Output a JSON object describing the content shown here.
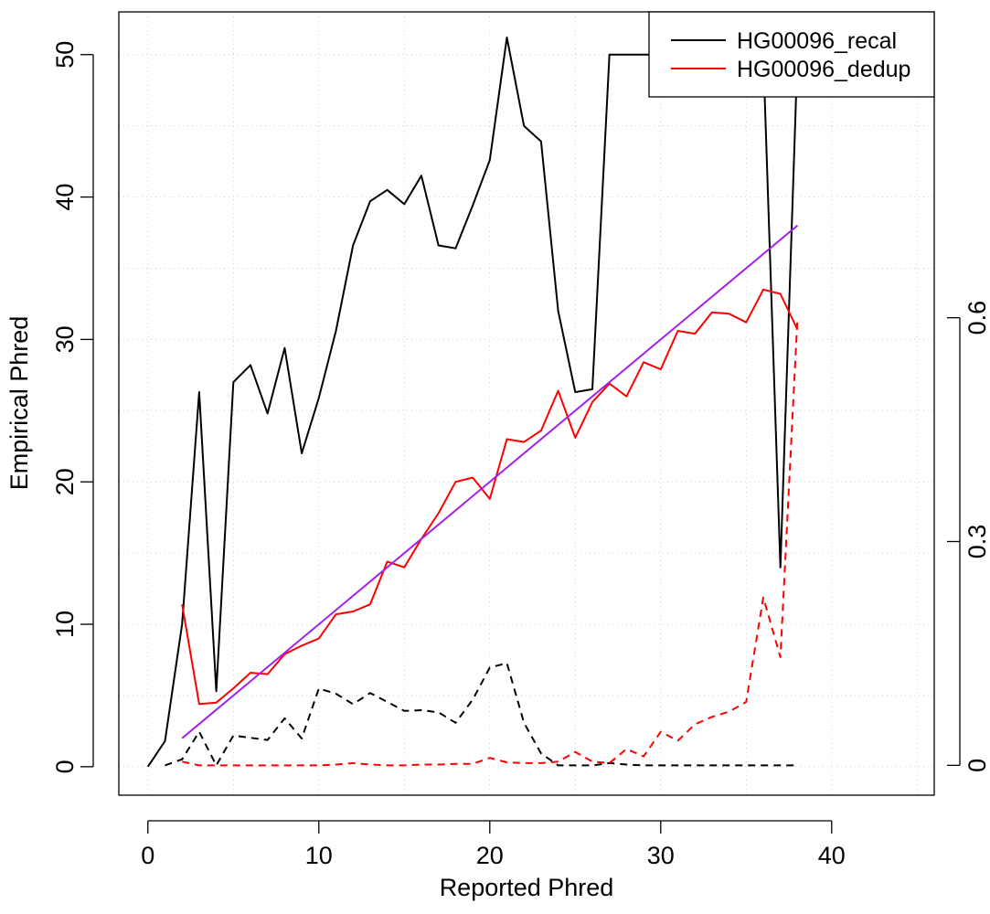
{
  "chart_data": {
    "type": "line",
    "title": "",
    "xlabel": "Reported Phred",
    "ylabel": "Empirical Phred",
    "xlim": [
      -1.7,
      46
    ],
    "ylim": [
      -2,
      53
    ],
    "y2lim": [
      -0.04,
      1.01
    ],
    "grid": true,
    "legend_position": "top-right",
    "x_ticks": [
      0,
      10,
      20,
      30,
      40
    ],
    "y_ticks": [
      0,
      10,
      20,
      30,
      40,
      50
    ],
    "y2_ticks": [
      0,
      0.3,
      0.6
    ],
    "x_tick_labels": [
      "0",
      "10",
      "20",
      "30",
      "40"
    ],
    "y_tick_labels": [
      "0",
      "10",
      "20",
      "30",
      "40",
      "50"
    ],
    "y2_tick_labels": [
      "0",
      "0.3",
      "0.6"
    ],
    "legend": [
      {
        "name": "HG00096_recal",
        "color": "#000000"
      },
      {
        "name": "HG00096_dedup",
        "color": "#ff0000"
      }
    ],
    "series": [
      {
        "name": "HG00096_recal",
        "color": "#000000",
        "style": "solid",
        "axis": "left",
        "x": [
          0,
          1,
          2,
          3,
          4,
          5,
          6,
          7,
          8,
          9,
          10,
          11,
          12,
          13,
          14,
          15,
          16,
          17,
          18,
          19,
          20,
          21,
          22,
          23,
          24,
          25,
          26,
          27,
          28,
          29,
          30,
          31,
          32,
          33,
          34,
          35,
          36,
          37,
          38
        ],
        "y": [
          0,
          1.8,
          10,
          26.3,
          5.3,
          27,
          28.2,
          24.8,
          29.4,
          22,
          25.9,
          30.6,
          36.6,
          39.7,
          40.5,
          39.5,
          41.5,
          36.6,
          36.4,
          39.4,
          42.6,
          51.2,
          45,
          43.9,
          32,
          26.3,
          26.5,
          50,
          50,
          50,
          50,
          50,
          50,
          50,
          50,
          50,
          50,
          14,
          50
        ]
      },
      {
        "name": "HG00096_dedup",
        "color": "#ff0000",
        "style": "solid",
        "axis": "left",
        "x": [
          2,
          3,
          4,
          5,
          6,
          7,
          8,
          9,
          10,
          11,
          12,
          13,
          14,
          15,
          16,
          17,
          18,
          19,
          20,
          21,
          22,
          23,
          24,
          25,
          26,
          27,
          28,
          29,
          30,
          31,
          32,
          33,
          34,
          35,
          36,
          37,
          38
        ],
        "y": [
          11.4,
          4.4,
          4.5,
          5.5,
          6.6,
          6.5,
          7.9,
          8.5,
          9,
          10.7,
          10.9,
          11.4,
          14.4,
          14,
          16,
          17.8,
          20,
          20.3,
          18.8,
          23,
          22.8,
          23.6,
          26.4,
          23.1,
          25.6,
          26.9,
          26,
          28.4,
          27.9,
          30.6,
          30.4,
          31.9,
          31.8,
          31.2,
          33.5,
          33.2,
          30.7
        ]
      },
      {
        "name": "",
        "color": "#a020f0",
        "style": "solid",
        "axis": "left",
        "x": [
          2,
          38
        ],
        "y": [
          2,
          38
        ]
      },
      {
        "name": "",
        "color": "#000000",
        "style": "dashed",
        "axis": "right",
        "x": [
          1,
          2,
          3,
          4,
          5,
          6,
          7,
          8,
          9,
          10,
          11,
          12,
          13,
          14,
          15,
          16,
          17,
          18,
          19,
          20,
          21,
          22,
          23,
          24,
          25,
          26,
          27,
          28,
          29,
          30,
          31,
          32,
          33,
          34,
          35,
          36,
          37,
          38
        ],
        "y": [
          0,
          0.008,
          0.045,
          0,
          0.04,
          0.037,
          0.034,
          0.063,
          0.036,
          0.103,
          0.096,
          0.082,
          0.097,
          0.085,
          0.073,
          0.074,
          0.071,
          0.057,
          0.088,
          0.131,
          0.137,
          0.057,
          0.016,
          0,
          0,
          0,
          0.003,
          0.001,
          0,
          0,
          0,
          0,
          0,
          0,
          0,
          0,
          0,
          0
        ]
      },
      {
        "name": "",
        "color": "#ff0000",
        "style": "dashed",
        "axis": "right",
        "x": [
          2,
          3,
          4,
          5,
          6,
          7,
          8,
          9,
          10,
          11,
          12,
          13,
          14,
          15,
          16,
          17,
          18,
          19,
          20,
          21,
          22,
          23,
          24,
          25,
          26,
          27,
          28,
          29,
          30,
          31,
          32,
          33,
          34,
          35,
          36,
          37,
          38
        ],
        "y": [
          0.005,
          0,
          0,
          0,
          0,
          0,
          0,
          0,
          0,
          0.001,
          0.003,
          0.001,
          0,
          0,
          0.001,
          0.001,
          0.002,
          0.002,
          0.01,
          0.004,
          0.003,
          0.003,
          0.005,
          0.018,
          0.005,
          0.003,
          0.022,
          0.012,
          0.045,
          0.033,
          0.055,
          0.065,
          0.072,
          0.085,
          0.225,
          0.145,
          0.6
        ]
      }
    ]
  }
}
